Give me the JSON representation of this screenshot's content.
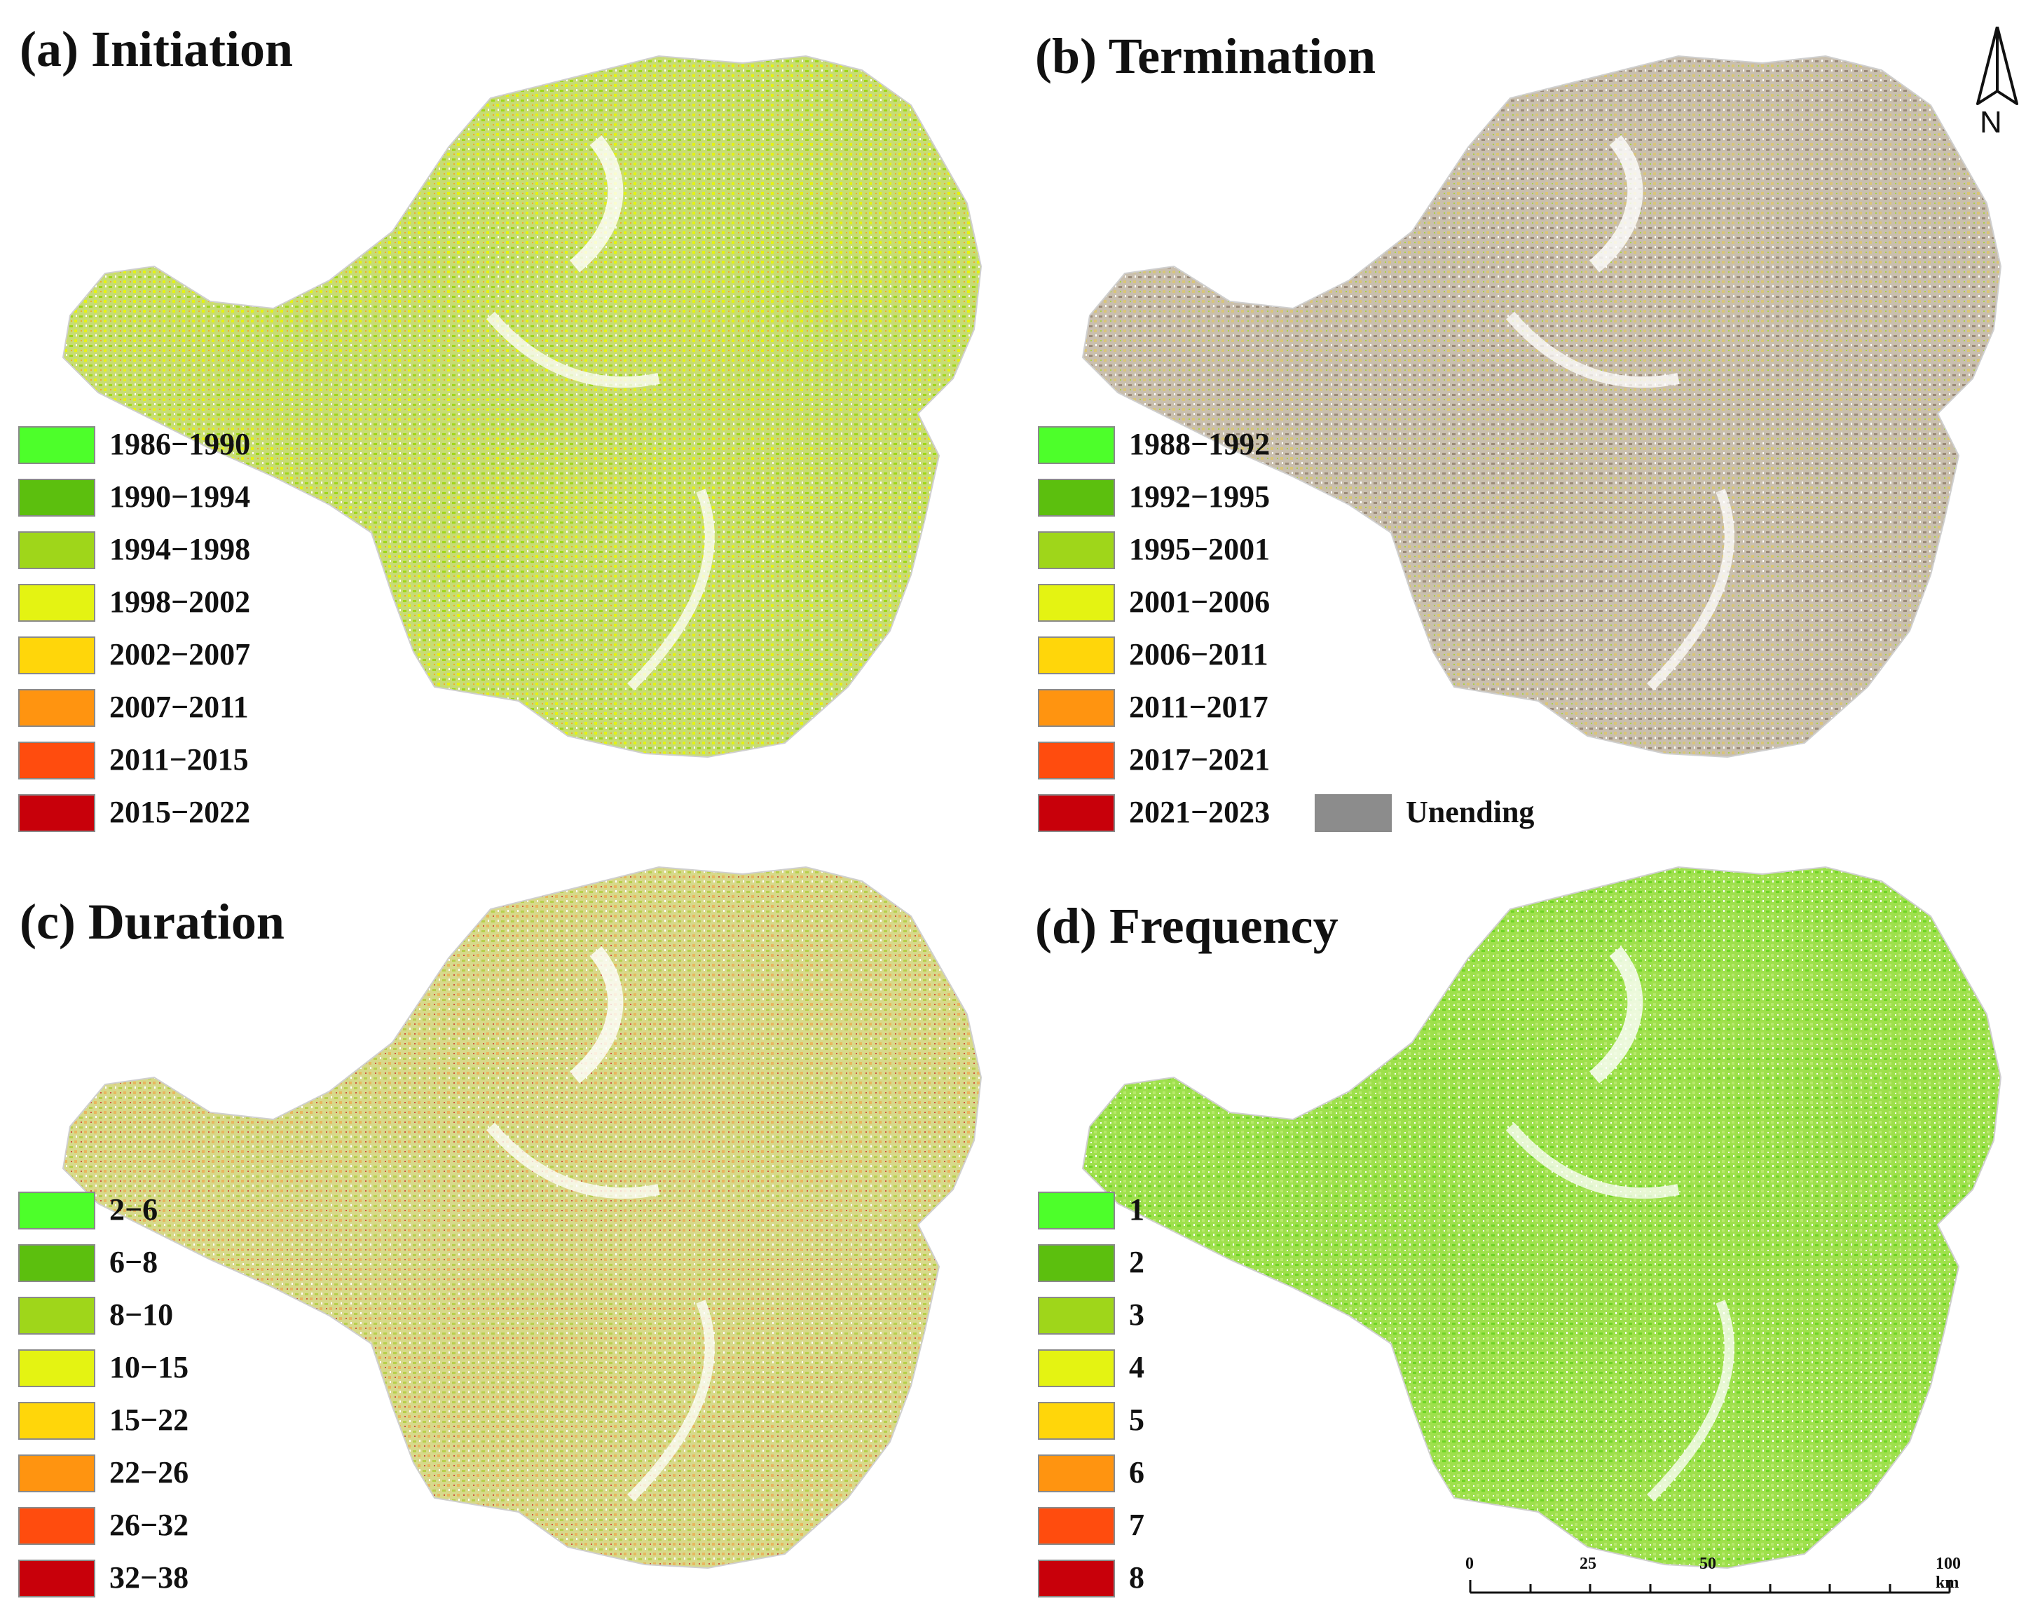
{
  "panels": [
    {
      "title": "(a) Initiation",
      "legend": [
        {
          "label": "1986−1990",
          "color": "#4dff2a"
        },
        {
          "label": "1990−1994",
          "color": "#5cbf0e"
        },
        {
          "label": "1994−1998",
          "color": "#9fd61a"
        },
        {
          "label": "1998−2002",
          "color": "#e4f312"
        },
        {
          "label": "2002−2007",
          "color": "#ffd60a"
        },
        {
          "label": "2007−2011",
          "color": "#ff9410"
        },
        {
          "label": "2011−2015",
          "color": "#ff4c0e"
        },
        {
          "label": "2015−2022",
          "color": "#c8000a"
        }
      ]
    },
    {
      "title": "(b) Termination",
      "legend": [
        {
          "label": "1988−1992",
          "color": "#4dff2a"
        },
        {
          "label": "1992−1995",
          "color": "#5cbf0e"
        },
        {
          "label": "1995−2001",
          "color": "#9fd61a"
        },
        {
          "label": "2001−2006",
          "color": "#e4f312"
        },
        {
          "label": "2006−2011",
          "color": "#ffd60a"
        },
        {
          "label": "2011−2017",
          "color": "#ff9410"
        },
        {
          "label": "2017−2021",
          "color": "#ff4c0e"
        },
        {
          "label": "2021−2023",
          "color": "#c8000a"
        }
      ],
      "extra_legend": {
        "label": "Unending",
        "color": "#8c8c8c"
      }
    },
    {
      "title": "(c) Duration",
      "legend": [
        {
          "label": "2−6",
          "color": "#4dff2a"
        },
        {
          "label": "6−8",
          "color": "#5cbf0e"
        },
        {
          "label": "8−10",
          "color": "#9fd61a"
        },
        {
          "label": "10−15",
          "color": "#e4f312"
        },
        {
          "label": "15−22",
          "color": "#ffd60a"
        },
        {
          "label": "22−26",
          "color": "#ff9410"
        },
        {
          "label": "26−32",
          "color": "#ff4c0e"
        },
        {
          "label": "32−38",
          "color": "#c8000a"
        }
      ]
    },
    {
      "title": "(d) Frequency",
      "legend": [
        {
          "label": "1",
          "color": "#4dff2a"
        },
        {
          "label": "2",
          "color": "#5cbf0e"
        },
        {
          "label": "3",
          "color": "#9fd61a"
        },
        {
          "label": "4",
          "color": "#e4f312"
        },
        {
          "label": "5",
          "color": "#ffd60a"
        },
        {
          "label": "6",
          "color": "#ff9410"
        },
        {
          "label": "7",
          "color": "#ff4c0e"
        },
        {
          "label": "8",
          "color": "#c8000a"
        }
      ]
    }
  ],
  "north_arrow": {
    "label": "N"
  },
  "scale_bar": {
    "labels": [
      "0",
      "25",
      "50",
      "100 km"
    ]
  }
}
